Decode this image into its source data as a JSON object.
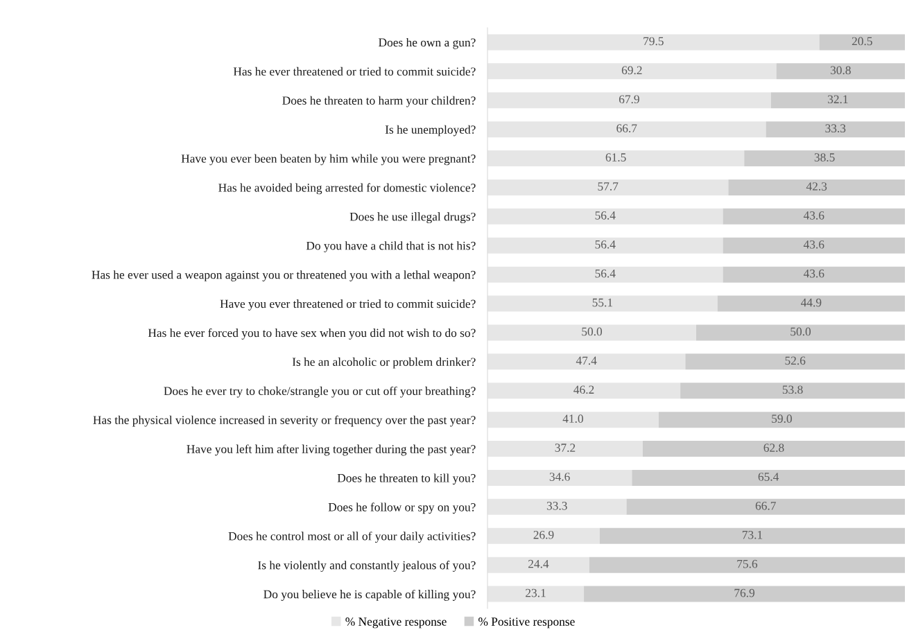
{
  "chart_data": {
    "type": "bar",
    "orientation": "horizontal",
    "stacked": true,
    "legend": "bottom",
    "grid": false,
    "tick_labels": "y",
    "categories": [
      "Does he own a gun?",
      "Has he ever threatened or tried to commit suicide?",
      "Does he threaten to harm your children?",
      "Is he unemployed?",
      "Have you ever been beaten by him while you were pregnant?",
      "Has he avoided being arrested for domestic violence?",
      "Does he use illegal drugs?",
      "Do you have a child that is not his?",
      "Has he ever used a weapon against you or threatened you with a lethal weapon?",
      "Have you ever threatened or tried to commit suicide?",
      "Has he ever forced you to have sex when you did not wish to do so?",
      "Is he an alcoholic or problem drinker?",
      "Does he ever try to choke/strangle you or cut off your breathing?",
      "Has the physical violence increased in severity or frequency over the past year?",
      "Have you left him after living together during the past year?",
      "Does he threaten to kill you?",
      "Does he follow or spy on you?",
      "Does he control most or all of your daily activities?",
      "Is he violently and constantly jealous of you?",
      "Do you believe he is capable of killing you?"
    ],
    "series": [
      {
        "name": "% Negative response",
        "color": "#e6e6e6",
        "values": [
          79.5,
          69.2,
          67.9,
          66.7,
          61.5,
          57.7,
          56.4,
          56.4,
          56.4,
          55.1,
          50,
          47.4,
          46.2,
          41,
          37.2,
          34.6,
          33.3,
          26.9,
          24.4,
          23.1
        ],
        "value_labels": [
          "79.5",
          "69.2",
          "67.9",
          "66.7",
          "61.5",
          "57.7",
          "56.4",
          "56.4",
          "56.4",
          "55.1",
          "50.0",
          "47.4",
          "46.2",
          "41.0",
          "37.2",
          "34.6",
          "33.3",
          "26.9",
          "24.4",
          "23.1"
        ]
      },
      {
        "name": "% Positive response",
        "color": "#cccccc",
        "values": [
          20.5,
          30.8,
          32.1,
          33.3,
          38.5,
          42.3,
          43.6,
          43.6,
          43.6,
          44.9,
          50,
          52.6,
          53.8,
          59,
          62.8,
          65.4,
          66.7,
          73.1,
          75.6,
          76.9
        ],
        "value_labels": [
          "20.5",
          "30.8",
          "32.1",
          "33.3",
          "38.5",
          "42.3",
          "43.6",
          "43.6",
          "43.6",
          "44.9",
          "50.0",
          "52.6",
          "53.8",
          "59.0",
          "62.8",
          "65.4",
          "66.7",
          "73.1",
          "75.6",
          "76.9"
        ]
      }
    ]
  }
}
